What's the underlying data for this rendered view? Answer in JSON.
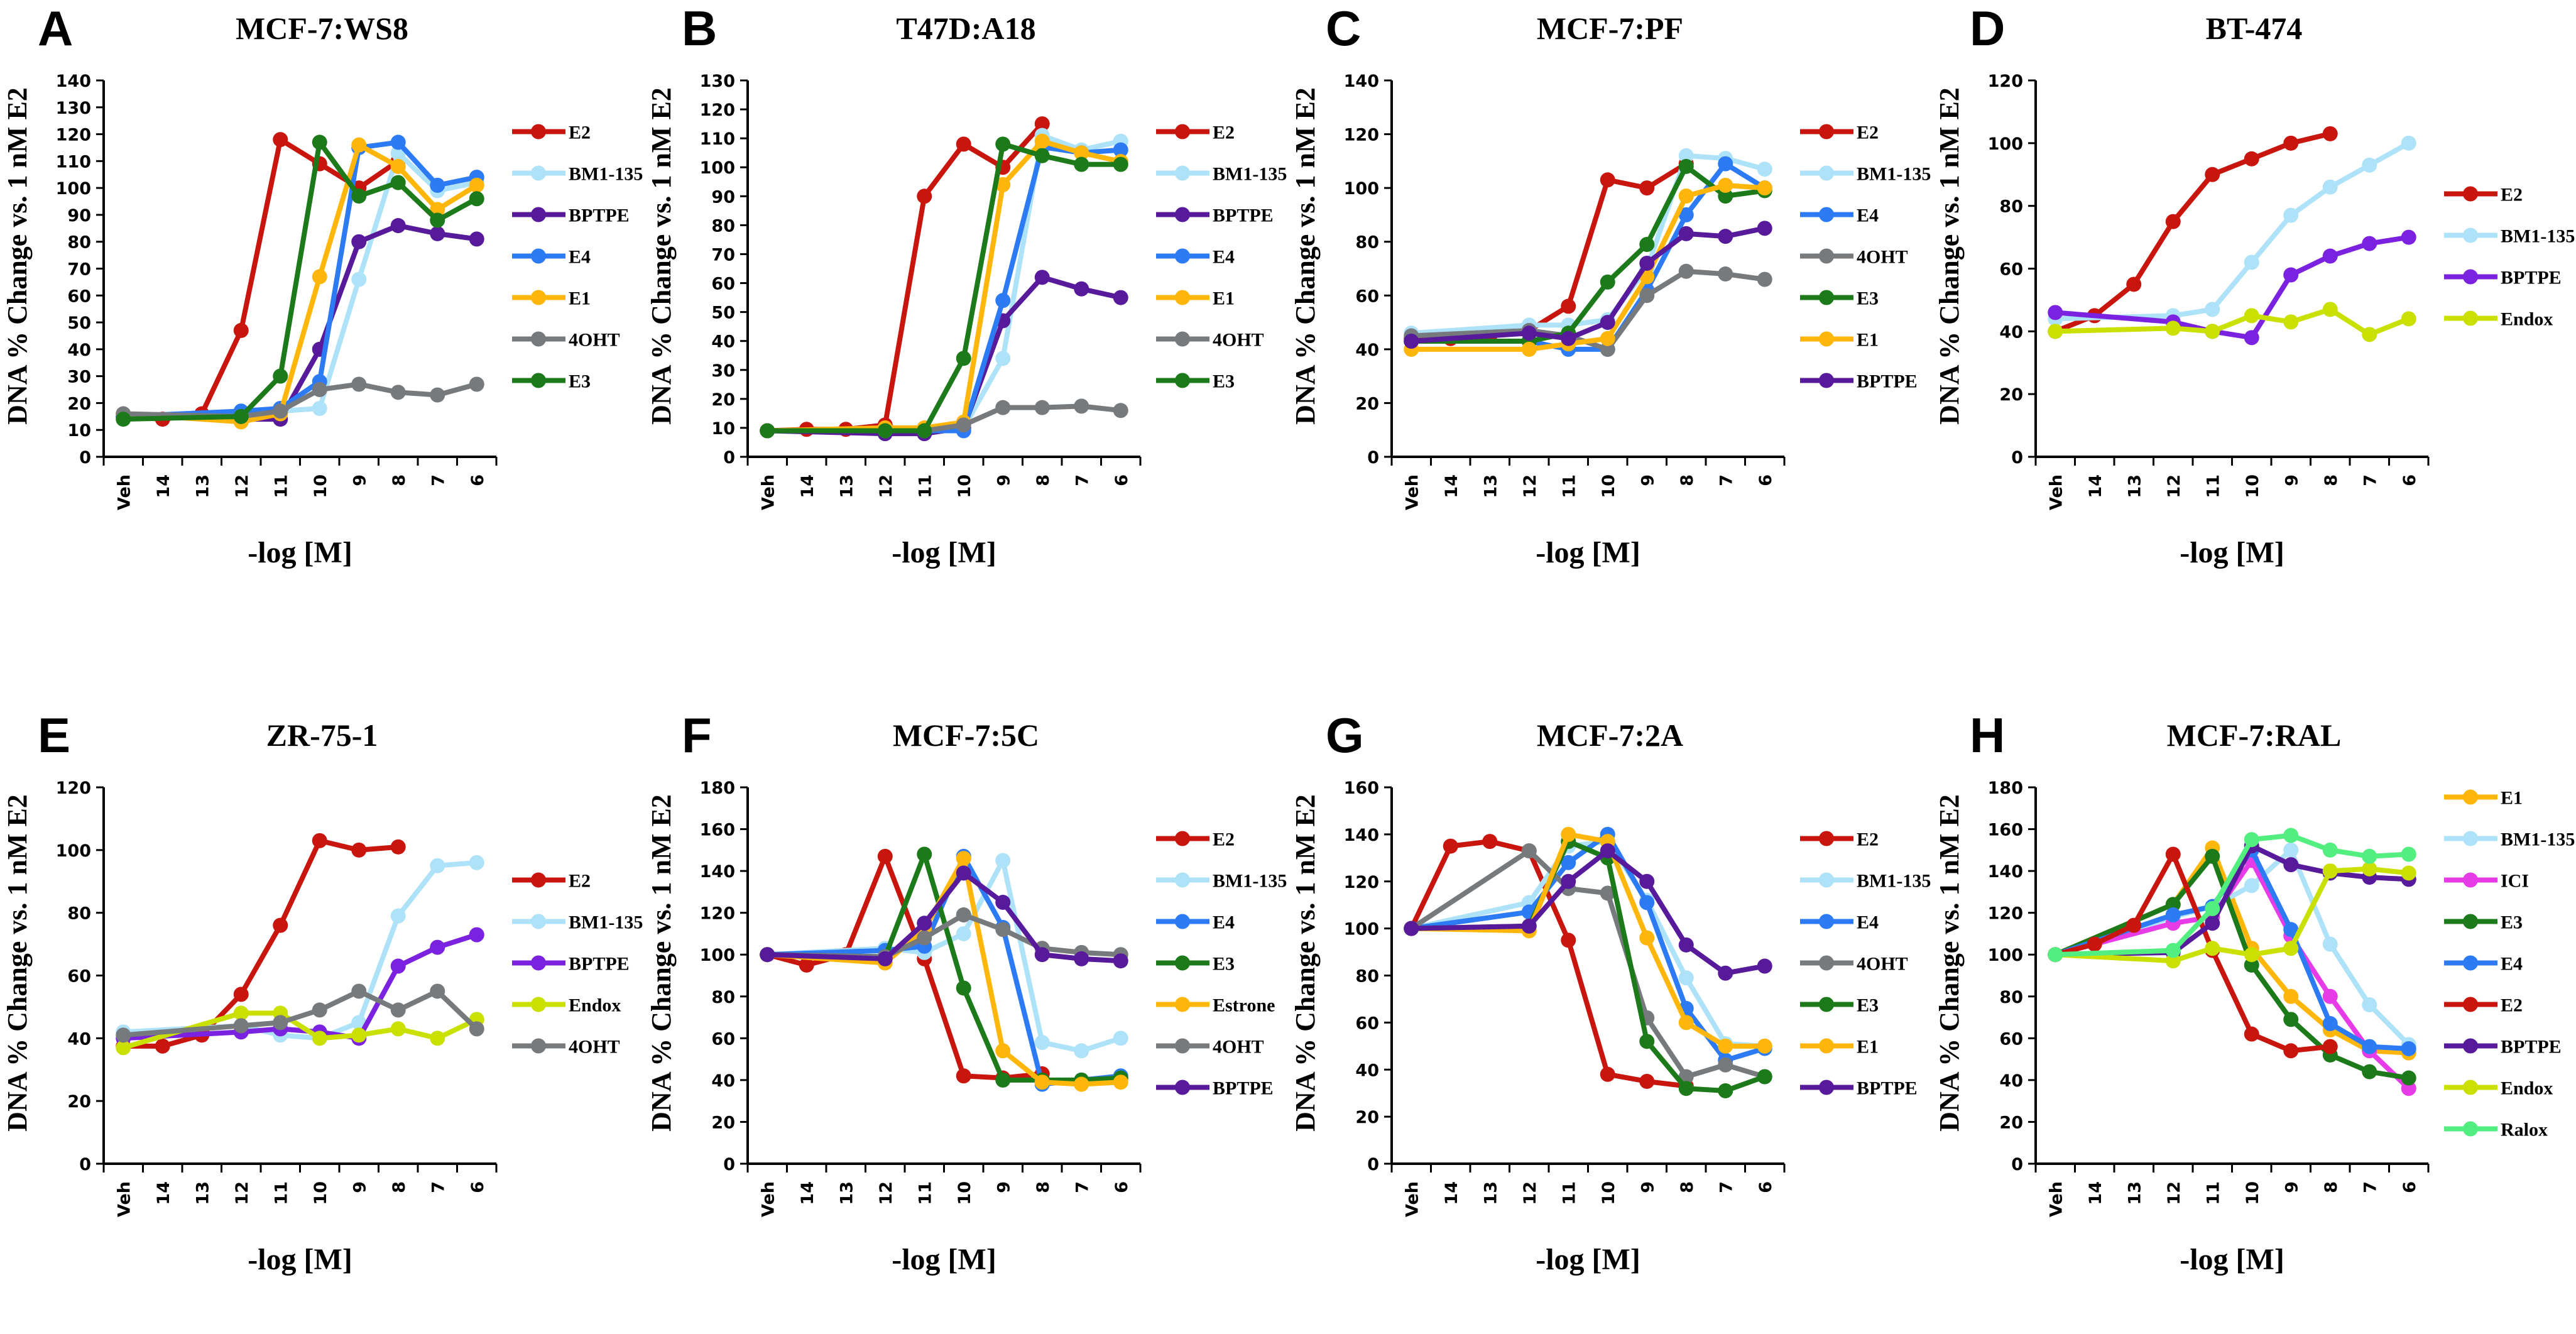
{
  "colors": {
    "E2": "#c8160f",
    "BM1-135": "#aee2f8",
    "BPTPE": "#561a9a",
    "BPTPE_bright": "#7b22e0",
    "E4": "#2d7bf4",
    "E1": "#ffb60a",
    "Estrone": "#ffb60a",
    "4OHT": "#767a7d",
    "E3": "#1d7a1a",
    "Endox": "#c9e000",
    "ICI": "#e63be6",
    "Ralox": "#52ef80"
  },
  "chart_data": [
    {
      "type": "line",
      "letter": "A",
      "title": "MCF-7:WS8",
      "xlabel": "-log [M]",
      "ylabel": "DNA % Change vs. 1 nM E2",
      "ylim": [
        0,
        140
      ],
      "ystep": 10,
      "categories": [
        "Veh",
        "14",
        "13",
        "12",
        "11",
        "10",
        "9",
        "8",
        "7",
        "6"
      ],
      "series": [
        {
          "name": "E2",
          "values": [
            15,
            14,
            16,
            47,
            118,
            109,
            100,
            110,
            null,
            null
          ]
        },
        {
          "name": "BM1-135",
          "values": [
            16,
            null,
            null,
            15,
            17,
            18,
            66,
            113,
            99,
            102
          ]
        },
        {
          "name": "BPTPE",
          "values": [
            15,
            null,
            null,
            14,
            14,
            40,
            80,
            86,
            83,
            81
          ]
        },
        {
          "name": "E4",
          "values": [
            15,
            null,
            null,
            17,
            18,
            28,
            115,
            117,
            101,
            104
          ]
        },
        {
          "name": "E1",
          "values": [
            16,
            null,
            null,
            13,
            16,
            67,
            116,
            108,
            92,
            101
          ]
        },
        {
          "name": "4OHT",
          "values": [
            16,
            null,
            null,
            15,
            17,
            25,
            27,
            24,
            23,
            27
          ]
        },
        {
          "name": "E3",
          "values": [
            14,
            null,
            null,
            15,
            30,
            117,
            97,
            102,
            88,
            96
          ]
        }
      ]
    },
    {
      "type": "line",
      "letter": "B",
      "title": "T47D:A18",
      "xlabel": "-log [M]",
      "ylabel": "DNA % Change vs. 1 nM E2",
      "ylim": [
        0,
        130
      ],
      "ystep": 10,
      "categories": [
        "Veh",
        "14",
        "13",
        "12",
        "11",
        "10",
        "9",
        "8",
        "7",
        "6"
      ],
      "series": [
        {
          "name": "E2",
          "values": [
            9,
            9.5,
            9.5,
            11,
            90,
            108,
            100,
            115,
            null,
            null
          ]
        },
        {
          "name": "BM1-135",
          "values": [
            9,
            null,
            null,
            9,
            9,
            10,
            34,
            111,
            106,
            109
          ]
        },
        {
          "name": "BPTPE",
          "values": [
            9,
            null,
            null,
            8,
            8,
            10,
            47,
            62,
            58,
            55
          ]
        },
        {
          "name": "E4",
          "values": [
            9,
            null,
            null,
            9,
            9,
            9,
            54,
            107,
            105,
            106
          ]
        },
        {
          "name": "E1",
          "values": [
            9,
            null,
            null,
            10,
            10,
            12,
            94,
            109,
            105,
            102
          ]
        },
        {
          "name": "4OHT",
          "values": [
            9,
            null,
            null,
            9,
            9,
            11,
            17,
            17,
            17.5,
            16
          ]
        },
        {
          "name": "E3",
          "values": [
            9,
            null,
            null,
            9,
            9,
            34,
            108,
            104,
            101,
            101
          ]
        }
      ]
    },
    {
      "type": "line",
      "letter": "C",
      "title": "MCF-7:PF",
      "xlabel": "-log [M]",
      "ylabel": "DNA % Change vs. 1 nM E2",
      "ylim": [
        0,
        140
      ],
      "ystep": 20,
      "categories": [
        "Veh",
        "14",
        "13",
        "12",
        "11",
        "10",
        "9",
        "8",
        "7",
        "6"
      ],
      "series": [
        {
          "name": "E2",
          "values": [
            44,
            44,
            45,
            47,
            56,
            103,
            100,
            109,
            null,
            null
          ]
        },
        {
          "name": "BM1-135",
          "values": [
            46,
            null,
            null,
            49,
            49,
            51,
            70,
            112,
            111,
            107
          ]
        },
        {
          "name": "E4",
          "values": [
            43,
            null,
            null,
            43,
            40,
            40,
            62,
            90,
            109,
            100
          ]
        },
        {
          "name": "4OHT",
          "values": [
            45,
            null,
            null,
            47,
            45,
            40,
            60,
            69,
            68,
            66
          ]
        },
        {
          "name": "E3",
          "values": [
            43,
            null,
            null,
            43,
            46,
            65,
            79,
            108,
            97,
            99
          ]
        },
        {
          "name": "E1",
          "values": [
            40,
            null,
            null,
            40,
            42,
            44,
            67,
            97,
            101,
            100
          ]
        },
        {
          "name": "BPTPE",
          "values": [
            43,
            null,
            null,
            46,
            44,
            50,
            72,
            83,
            82,
            85
          ]
        }
      ]
    },
    {
      "type": "line",
      "letter": "D",
      "title": "BT-474",
      "xlabel": "-log [M]",
      "ylabel": "DNA % Change vs. 1 nM E2",
      "ylim": [
        0,
        120
      ],
      "ystep": 20,
      "categories": [
        "Veh",
        "14",
        "13",
        "12",
        "11",
        "10",
        "9",
        "8",
        "7",
        "6"
      ],
      "series": [
        {
          "name": "E2",
          "values": [
            40,
            45,
            55,
            75,
            90,
            95,
            100,
            103,
            null,
            null
          ]
        },
        {
          "name": "BM1-135",
          "values": [
            44,
            null,
            null,
            45,
            47,
            62,
            77,
            86,
            93,
            100
          ]
        },
        {
          "name": "BPTPE",
          "values": [
            46,
            null,
            null,
            43,
            40,
            38,
            58,
            64,
            68,
            70
          ]
        },
        {
          "name": "Endox",
          "values": [
            40,
            null,
            null,
            41,
            40,
            45,
            43,
            47,
            39,
            44
          ]
        }
      ]
    },
    {
      "type": "line",
      "letter": "E",
      "title": "ZR-75-1",
      "xlabel": "-log [M]",
      "ylabel": "DNA % Change vs. 1 nM E2",
      "ylim": [
        0,
        120
      ],
      "ystep": 20,
      "categories": [
        "Veh",
        "14",
        "13",
        "12",
        "11",
        "10",
        "9",
        "8",
        "7",
        "6"
      ],
      "series": [
        {
          "name": "E2",
          "values": [
            37.5,
            37.5,
            41,
            54,
            76,
            103,
            100,
            101,
            null,
            null
          ]
        },
        {
          "name": "BM1-135",
          "values": [
            42,
            null,
            null,
            44,
            41,
            40,
            45,
            79,
            95,
            96
          ]
        },
        {
          "name": "BPTPE",
          "values": [
            40,
            null,
            null,
            42,
            43,
            42,
            40,
            63,
            69,
            73
          ]
        },
        {
          "name": "Endox",
          "values": [
            37,
            null,
            null,
            48,
            48,
            40,
            41,
            43,
            40,
            46
          ]
        },
        {
          "name": "4OHT",
          "values": [
            41,
            null,
            null,
            44,
            45,
            49,
            55,
            49,
            55,
            43
          ]
        }
      ]
    },
    {
      "type": "line",
      "letter": "F",
      "title": "MCF-7:5C",
      "xlabel": "-log [M]",
      "ylabel": "DNA % Change vs. 1 nM E2",
      "ylim": [
        0,
        180
      ],
      "ystep": 20,
      "categories": [
        "Veh",
        "14",
        "13",
        "12",
        "11",
        "10",
        "9",
        "8",
        "7",
        "6"
      ],
      "series": [
        {
          "name": "E2",
          "values": [
            100,
            95,
            100,
            147,
            98,
            42,
            41,
            43,
            null,
            null
          ]
        },
        {
          "name": "BM1-135",
          "values": [
            100,
            null,
            null,
            103,
            101,
            110,
            145,
            58,
            54,
            60
          ]
        },
        {
          "name": "E4",
          "values": [
            100,
            null,
            null,
            102,
            104,
            147,
            113,
            38,
            40,
            42
          ]
        },
        {
          "name": "E3",
          "values": [
            100,
            null,
            null,
            99,
            148,
            84,
            40,
            40,
            40,
            41
          ]
        },
        {
          "name": "Estrone",
          "values": [
            100,
            null,
            null,
            96,
            112,
            146,
            54,
            39,
            38,
            39
          ]
        },
        {
          "name": "4OHT",
          "values": [
            100,
            null,
            null,
            99,
            108,
            119,
            112,
            103,
            101,
            100
          ]
        },
        {
          "name": "BPTPE",
          "values": [
            100,
            null,
            null,
            98,
            115,
            139,
            125,
            100,
            98,
            97
          ]
        }
      ]
    },
    {
      "type": "line",
      "letter": "G",
      "title": "MCF-7:2A",
      "xlabel": "-log [M]",
      "ylabel": "DNA % Change vs. 1 nM E2",
      "ylim": [
        0,
        160
      ],
      "ystep": 20,
      "categories": [
        "Veh",
        "14",
        "13",
        "12",
        "11",
        "10",
        "9",
        "8",
        "7",
        "6"
      ],
      "series": [
        {
          "name": "E2",
          "values": [
            100,
            135,
            137,
            133,
            95,
            38,
            35,
            33,
            null,
            null
          ]
        },
        {
          "name": "BM1-135",
          "values": [
            100,
            null,
            null,
            111,
            135,
            137,
            112,
            79,
            51,
            50
          ]
        },
        {
          "name": "E4",
          "values": [
            100,
            null,
            null,
            107,
            128,
            140,
            111,
            66,
            44,
            49
          ]
        },
        {
          "name": "4OHT",
          "values": [
            100,
            null,
            null,
            133,
            117,
            115,
            62,
            37,
            42,
            37
          ]
        },
        {
          "name": "E3",
          "values": [
            100,
            null,
            null,
            101,
            137,
            130,
            52,
            32,
            31,
            37
          ]
        },
        {
          "name": "E1",
          "values": [
            100,
            null,
            null,
            99,
            140,
            137,
            96,
            60,
            50,
            50
          ]
        },
        {
          "name": "BPTPE",
          "values": [
            100,
            null,
            null,
            101,
            120,
            133,
            120,
            93,
            81,
            84
          ]
        }
      ]
    },
    {
      "type": "line",
      "letter": "H",
      "title": "MCF-7:RAL",
      "xlabel": "-log [M]",
      "ylabel": "DNA % Change vs. 1 nM E2",
      "ylim": [
        0,
        180
      ],
      "ystep": 20,
      "categories": [
        "Veh",
        "14",
        "13",
        "12",
        "11",
        "10",
        "9",
        "8",
        "7",
        "6"
      ],
      "series": [
        {
          "name": "E1",
          "values": [
            100,
            null,
            null,
            124,
            151,
            103,
            80,
            64,
            54,
            53
          ]
        },
        {
          "name": "BM1-135",
          "values": [
            100,
            null,
            null,
            118,
            123,
            133,
            150,
            105,
            76,
            57
          ]
        },
        {
          "name": "ICI",
          "values": [
            100,
            null,
            null,
            115,
            118,
            145,
            109,
            80,
            54,
            36
          ]
        },
        {
          "name": "E3",
          "values": [
            100,
            null,
            null,
            124,
            147,
            95,
            69,
            52,
            44,
            41
          ]
        },
        {
          "name": "E4",
          "values": [
            100,
            null,
            null,
            119,
            123,
            150,
            112,
            67,
            56,
            55
          ]
        },
        {
          "name": "E2",
          "values": [
            100,
            105,
            114,
            148,
            102,
            62,
            54,
            56,
            null,
            null
          ]
        },
        {
          "name": "BPTPE",
          "values": [
            100,
            null,
            null,
            101,
            115,
            152,
            143,
            139,
            137,
            136
          ]
        },
        {
          "name": "Endox",
          "values": [
            100,
            null,
            null,
            97,
            103,
            100,
            103,
            140,
            141,
            139
          ]
        },
        {
          "name": "Ralox",
          "values": [
            100,
            null,
            null,
            102,
            122,
            155,
            157,
            150,
            147,
            148
          ]
        }
      ]
    }
  ]
}
